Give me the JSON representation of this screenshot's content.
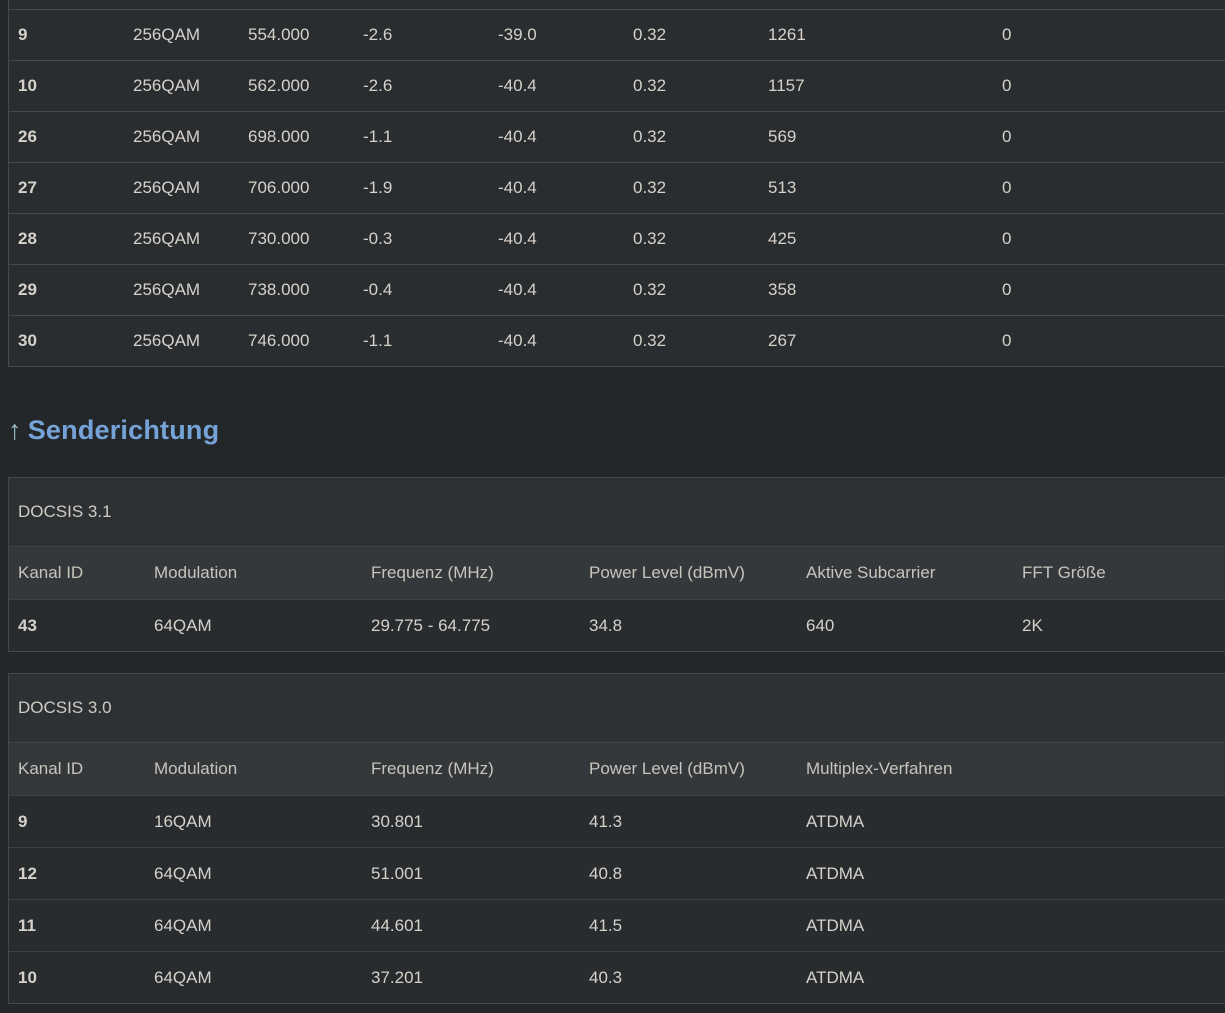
{
  "colors": {
    "page_bg": "#242729",
    "row_bg": "#2a2d2f",
    "separator": "#474a4d",
    "panel_bg": "#2e3133",
    "header_row_bg": "#35383a",
    "heading_blue": "#75a2d7",
    "text": "#d5d1cb"
  },
  "downstream": {
    "rows": [
      [
        "9",
        "256QAM",
        "554.000",
        "-2.6",
        "-39.0",
        "0.32",
        "1261",
        "0"
      ],
      [
        "10",
        "256QAM",
        "562.000",
        "-2.6",
        "-40.4",
        "0.32",
        "1157",
        "0"
      ],
      [
        "26",
        "256QAM",
        "698.000",
        "-1.1",
        "-40.4",
        "0.32",
        "569",
        "0"
      ],
      [
        "27",
        "256QAM",
        "706.000",
        "-1.9",
        "-40.4",
        "0.32",
        "513",
        "0"
      ],
      [
        "28",
        "256QAM",
        "730.000",
        "-0.3",
        "-40.4",
        "0.32",
        "425",
        "0"
      ],
      [
        "29",
        "256QAM",
        "738.000",
        "-0.4",
        "-40.4",
        "0.32",
        "358",
        "0"
      ],
      [
        "30",
        "256QAM",
        "746.000",
        "-1.1",
        "-40.4",
        "0.32",
        "267",
        "0"
      ]
    ]
  },
  "upstream": {
    "heading_arrow": "↑",
    "heading_label": "Senderichtung",
    "docsis31": {
      "title": "DOCSIS 3.1",
      "headers": [
        "Kanal ID",
        "Modulation",
        "Frequenz (MHz)",
        "Power Level (dBmV)",
        "Aktive Subcarrier",
        "FFT Größe"
      ],
      "rows": [
        [
          "43",
          "64QAM",
          "29.775 - 64.775",
          "34.8",
          "640",
          "2K"
        ]
      ]
    },
    "docsis30": {
      "title": "DOCSIS 3.0",
      "headers": [
        "Kanal ID",
        "Modulation",
        "Frequenz (MHz)",
        "Power Level (dBmV)",
        "Multiplex-Verfahren"
      ],
      "rows": [
        [
          "9",
          "16QAM",
          "30.801",
          "41.3",
          "ATDMA"
        ],
        [
          "12",
          "64QAM",
          "51.001",
          "40.8",
          "ATDMA"
        ],
        [
          "11",
          "64QAM",
          "44.601",
          "41.5",
          "ATDMA"
        ],
        [
          "10",
          "64QAM",
          "37.201",
          "40.3",
          "ATDMA"
        ]
      ]
    }
  }
}
